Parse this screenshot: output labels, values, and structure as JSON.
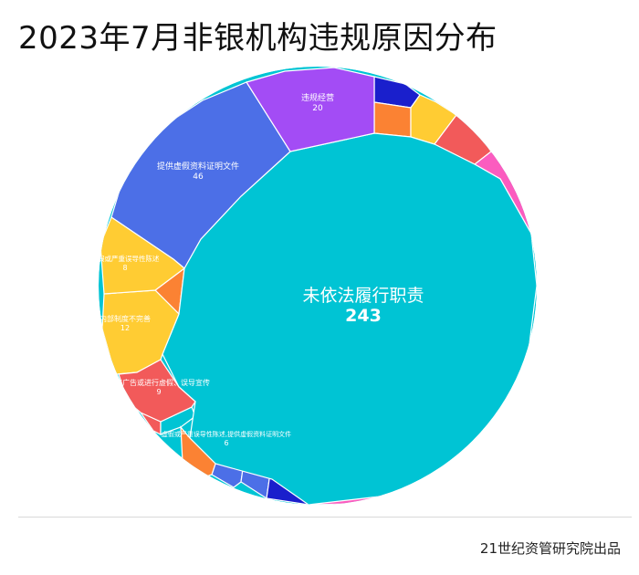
{
  "title": "2023年7月非银机构违规原因分布",
  "source": "21世纪资管研究院出品",
  "colors": {
    "teal": "#00C4D4",
    "blue": "#4C6FE7",
    "purple": "#A34CF5",
    "navy": "#1A1FCC",
    "orange": "#FB8233",
    "yellow": "#FFCC33",
    "red": "#F25A5A",
    "pink": "#FB5CBF",
    "violet": "#A855F7"
  },
  "chart_data": {
    "type": "treemap-voronoi",
    "title": "2023年7月非银机构违规原因分布",
    "items": [
      {
        "label": "未依法履行职责",
        "value": 243,
        "color": "#00C4D4"
      },
      {
        "label": "提供虚假资料证明文件",
        "value": 46,
        "color": "#4C6FE7"
      },
      {
        "label": "违规经营",
        "value": 20,
        "color": "#A34CF5"
      },
      {
        "label": "内部制度不完善",
        "value": 12,
        "color": "#FFCC33"
      },
      {
        "label": "发布广告或进行虚假、误导宣传",
        "value": 9,
        "color": "#F25A5A"
      },
      {
        "label": "虚假或严重误导性陈述",
        "value": 8,
        "color": "#FFCC33"
      },
      {
        "label": "虚假或严重误导性陈述,提供虚假资料证明文件",
        "value": 6,
        "color": "#FB8233"
      }
    ],
    "unlabeled_cells": [
      {
        "color": "#1A1FCC"
      },
      {
        "color": "#FB8233"
      },
      {
        "color": "#FFCC33"
      },
      {
        "color": "#F25A5A"
      },
      {
        "color": "#FB5CBF"
      },
      {
        "color": "#FB8233"
      },
      {
        "color": "#00C4D4"
      },
      {
        "color": "#F25A5A"
      },
      {
        "color": "#A855F7"
      },
      {
        "color": "#00C4D4"
      },
      {
        "color": "#4C6FE7"
      },
      {
        "color": "#4C6FE7"
      },
      {
        "color": "#1A1FCC"
      },
      {
        "color": "#FB5CBF"
      }
    ]
  }
}
